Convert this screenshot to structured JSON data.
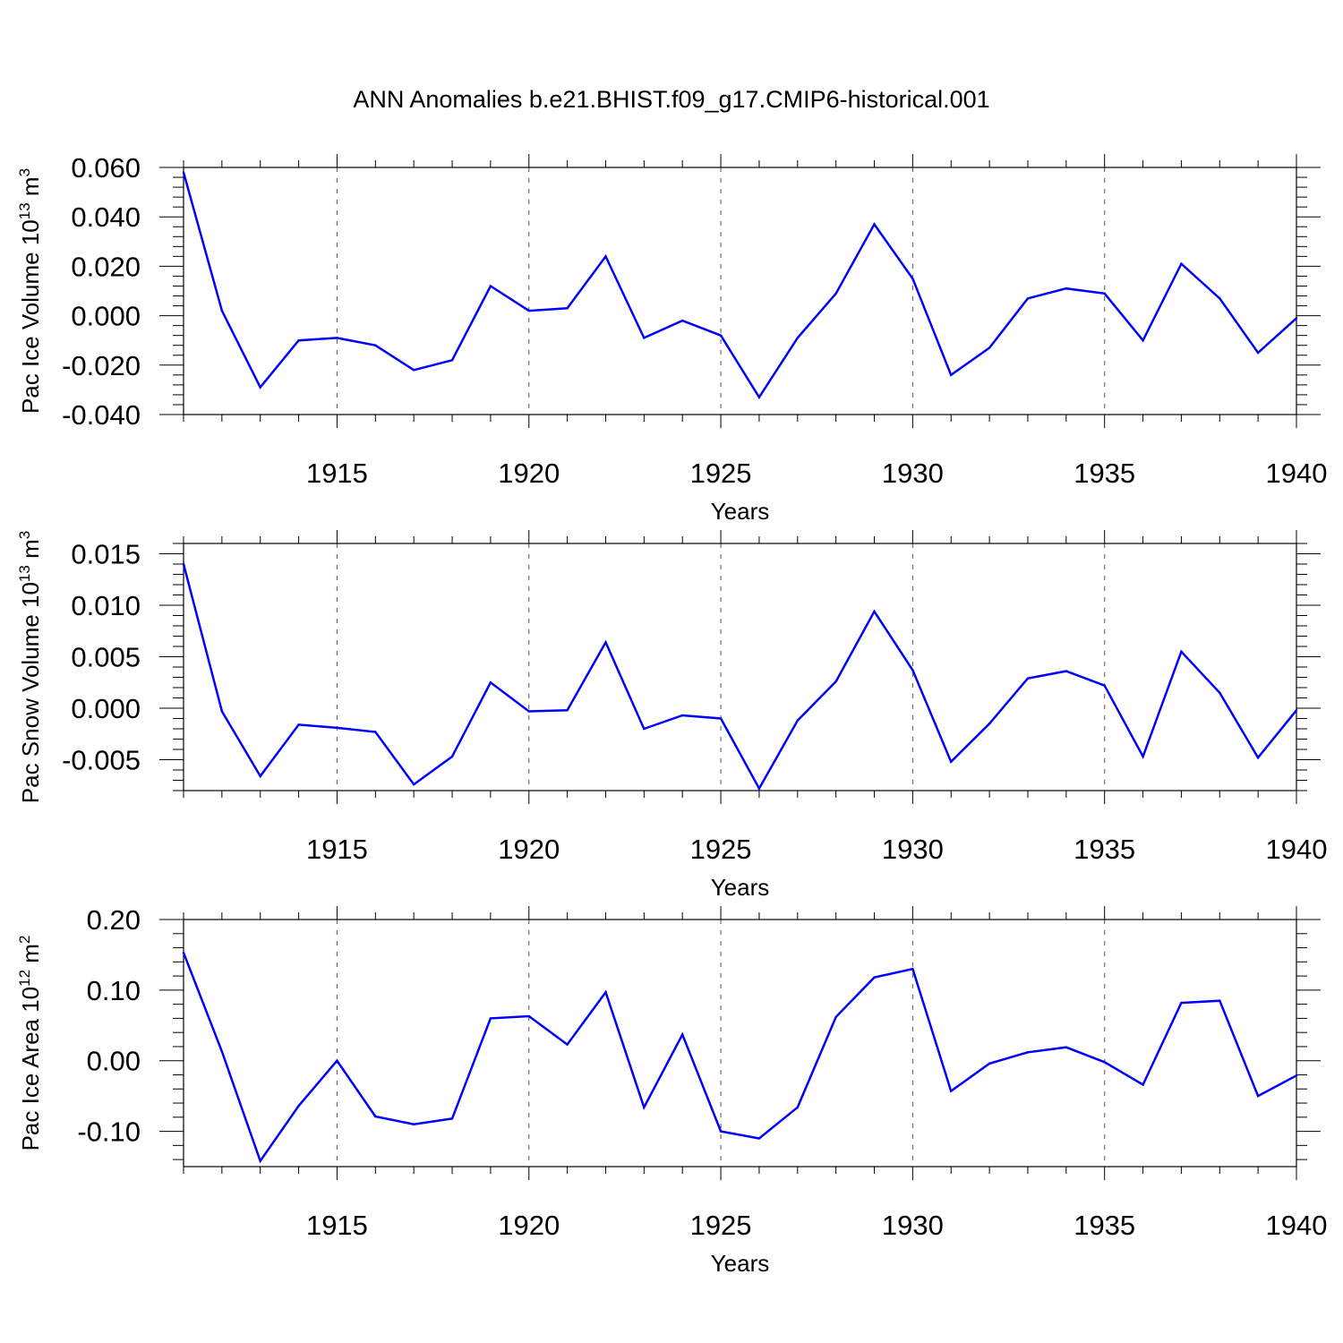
{
  "figure": {
    "title": "ANN Anomalies b.e21.BHIST.f09_g17.CMIP6-historical.001"
  },
  "colors": {
    "series": "#0000ff",
    "axis": "#000000",
    "grid": "#555555"
  },
  "chart_data": [
    {
      "type": "line",
      "xlabel": "Years",
      "ylabel": "Pac Ice Volume 10",
      "ylabel_exp": "13",
      "ylabel_unit": "m",
      "ylabel_unit_exp": "3",
      "xlim": [
        1911,
        1940
      ],
      "ylim": [
        -0.04,
        0.06
      ],
      "xticks": [
        1915,
        1920,
        1925,
        1930,
        1935,
        1940
      ],
      "xtick_labels": [
        "1915",
        "1920",
        "1925",
        "1930",
        "1935",
        "1940"
      ],
      "yticks": [
        -0.04,
        -0.02,
        0.0,
        0.02,
        0.04,
        0.06
      ],
      "ytick_labels": [
        "-0.040",
        "-0.020",
        "0.000",
        "0.020",
        "0.040",
        "0.060"
      ],
      "grid": "x-dashed",
      "x": [
        1911,
        1912,
        1913,
        1914,
        1915,
        1916,
        1917,
        1918,
        1919,
        1920,
        1921,
        1922,
        1923,
        1924,
        1925,
        1926,
        1927,
        1928,
        1929,
        1930,
        1931,
        1932,
        1933,
        1934,
        1935,
        1936,
        1937,
        1938,
        1939,
        1940
      ],
      "y": [
        0.058,
        0.002,
        -0.029,
        -0.01,
        -0.009,
        -0.012,
        -0.022,
        -0.018,
        0.012,
        0.002,
        0.003,
        0.024,
        -0.009,
        -0.002,
        -0.008,
        -0.033,
        -0.009,
        0.009,
        0.037,
        0.015,
        -0.024,
        -0.013,
        0.007,
        0.011,
        0.009,
        -0.01,
        0.021,
        0.007,
        -0.015,
        -0.001
      ]
    },
    {
      "type": "line",
      "xlabel": "Years",
      "ylabel": "Pac Snow Volume 10",
      "ylabel_exp": "13",
      "ylabel_unit": "m",
      "ylabel_unit_exp": "3",
      "xlim": [
        1911,
        1940
      ],
      "ylim": [
        -0.008,
        0.016
      ],
      "xticks": [
        1915,
        1920,
        1925,
        1930,
        1935,
        1940
      ],
      "xtick_labels": [
        "1915",
        "1920",
        "1925",
        "1930",
        "1935",
        "1940"
      ],
      "yticks": [
        -0.005,
        0.0,
        0.005,
        0.01,
        0.015
      ],
      "ytick_labels": [
        "-0.005",
        "0.000",
        "0.005",
        "0.010",
        "0.015"
      ],
      "grid": "x-dashed",
      "x": [
        1911,
        1912,
        1913,
        1914,
        1915,
        1916,
        1917,
        1918,
        1919,
        1920,
        1921,
        1922,
        1923,
        1924,
        1925,
        1926,
        1927,
        1928,
        1929,
        1930,
        1931,
        1932,
        1933,
        1934,
        1935,
        1936,
        1937,
        1938,
        1939,
        1940
      ],
      "y": [
        0.014,
        -0.0003,
        -0.0066,
        -0.0016,
        -0.0019,
        -0.0023,
        -0.0074,
        -0.0047,
        0.0025,
        -0.0003,
        -0.0002,
        0.0064,
        -0.002,
        -0.0007,
        -0.001,
        -0.0078,
        -0.0012,
        0.0026,
        0.0094,
        0.0037,
        -0.0052,
        -0.0015,
        0.0029,
        0.0036,
        0.0022,
        -0.0047,
        0.0055,
        0.0015,
        -0.0048,
        -0.0002
      ]
    },
    {
      "type": "line",
      "xlabel": "Years",
      "ylabel": "Pac Ice Area 10",
      "ylabel_exp": "12",
      "ylabel_unit": "m",
      "ylabel_unit_exp": "2",
      "xlim": [
        1911,
        1940
      ],
      "ylim": [
        -0.15,
        0.2
      ],
      "xticks": [
        1915,
        1920,
        1925,
        1930,
        1935,
        1940
      ],
      "xtick_labels": [
        "1915",
        "1920",
        "1925",
        "1930",
        "1935",
        "1940"
      ],
      "yticks": [
        -0.1,
        0.0,
        0.1,
        0.2
      ],
      "ytick_labels": [
        "-0.10",
        "0.00",
        "0.10",
        "0.20"
      ],
      "grid": "x-dashed",
      "x": [
        1911,
        1912,
        1913,
        1914,
        1915,
        1916,
        1917,
        1918,
        1919,
        1920,
        1921,
        1922,
        1923,
        1924,
        1925,
        1926,
        1927,
        1928,
        1929,
        1930,
        1931,
        1932,
        1933,
        1934,
        1935,
        1936,
        1937,
        1938,
        1939,
        1940
      ],
      "y": [
        0.153,
        0.013,
        -0.142,
        -0.064,
        0.0,
        -0.079,
        -0.09,
        -0.082,
        0.06,
        0.063,
        0.023,
        0.097,
        -0.066,
        0.037,
        -0.1,
        -0.11,
        -0.066,
        0.062,
        0.118,
        0.13,
        -0.043,
        -0.004,
        0.012,
        0.019,
        -0.002,
        -0.034,
        0.082,
        0.085,
        -0.05,
        -0.021
      ]
    }
  ]
}
